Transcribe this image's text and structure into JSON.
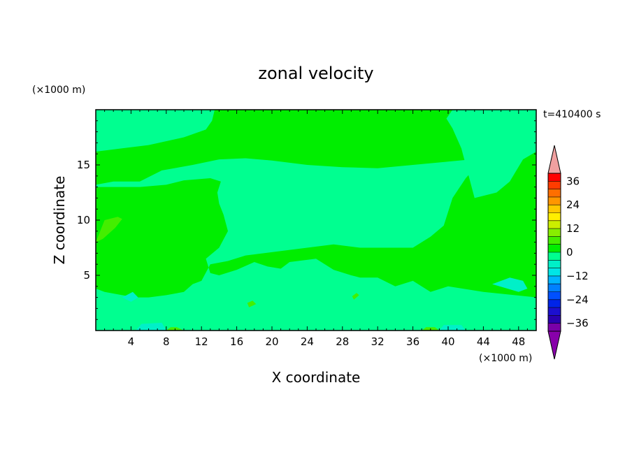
{
  "chart_data": {
    "type": "heatmap",
    "title": "zonal velocity",
    "xlabel": "X coordinate",
    "ylabel": "Z coordinate",
    "x_unit": "(×1000 m)",
    "y_unit": "(×1000 m)",
    "time_label": "t=410400 s",
    "xlim": [
      0,
      50
    ],
    "ylim": [
      0,
      20
    ],
    "x_ticks": [
      4,
      8,
      12,
      16,
      20,
      24,
      28,
      32,
      36,
      40,
      44,
      48
    ],
    "y_ticks": [
      5,
      10,
      15
    ],
    "colorbar": {
      "levels": [
        -40,
        -36,
        -32,
        -28,
        -24,
        -20,
        -16,
        -12,
        -8,
        -4,
        0,
        4,
        8,
        12,
        16,
        20,
        24,
        28,
        32,
        36,
        40
      ],
      "tick_labels": [
        36,
        24,
        12,
        0,
        -12,
        -24,
        -36
      ],
      "colors": [
        "#7a00a8",
        "#2a00b0",
        "#1c0fcf",
        "#0024e8",
        "#0050ff",
        "#0080ff",
        "#00b4ff",
        "#00e6e6",
        "#00f0c8",
        "#00ff90",
        "#00ee00",
        "#44ee00",
        "#88ee00",
        "#ccee00",
        "#ffee00",
        "#ffc800",
        "#ff9600",
        "#ff6e00",
        "#ff3c00",
        "#ff0000",
        "#f0a0a0"
      ],
      "under_color": "#8800aa",
      "over_color": "#f0a0a0"
    },
    "regions": [
      {
        "class": "0 to 4",
        "color": "#00ee00",
        "points": [
          [
            0,
            0
          ],
          [
            50,
            0
          ],
          [
            50,
            20
          ],
          [
            0,
            20
          ]
        ]
      },
      {
        "class": "-4 to 0",
        "color": "#00ff90",
        "points": [
          [
            0,
            20
          ],
          [
            13.5,
            20
          ],
          [
            13.2,
            19
          ],
          [
            12.5,
            18.2
          ],
          [
            10,
            17.5
          ],
          [
            6,
            16.8
          ],
          [
            3,
            16.5
          ],
          [
            0,
            16.2
          ]
        ]
      },
      {
        "class": "-4 to 0",
        "color": "#00ff90",
        "points": [
          [
            40.5,
            20
          ],
          [
            50,
            20
          ],
          [
            50,
            16.2
          ],
          [
            48.5,
            15.5
          ],
          [
            47,
            13.5
          ],
          [
            45.5,
            12.5
          ],
          [
            43,
            12
          ],
          [
            41.5,
            16.5
          ],
          [
            40.5,
            18.3
          ],
          [
            39.8,
            19.2
          ]
        ]
      },
      {
        "class": "-4 to 0",
        "color": "#00ff90",
        "points": [
          [
            0,
            13.2
          ],
          [
            2,
            13.5
          ],
          [
            5,
            13.5
          ],
          [
            7.5,
            14.5
          ],
          [
            11,
            15
          ],
          [
            14,
            15.5
          ],
          [
            17,
            15.6
          ],
          [
            20,
            15.4
          ],
          [
            24,
            15
          ],
          [
            28,
            14.8
          ],
          [
            32,
            14.7
          ],
          [
            36,
            15
          ],
          [
            40,
            15.3
          ],
          [
            44,
            15.6
          ],
          [
            42,
            13.8
          ],
          [
            40.5,
            12
          ],
          [
            39.5,
            9.5
          ],
          [
            38,
            8.5
          ],
          [
            36,
            7.5
          ],
          [
            34,
            7.5
          ],
          [
            30,
            7.5
          ],
          [
            27,
            7.8
          ],
          [
            24,
            7.5
          ],
          [
            21,
            7.2
          ],
          [
            17,
            6.8
          ],
          [
            15,
            6.3
          ],
          [
            13,
            6
          ],
          [
            12,
            4.5
          ],
          [
            11,
            4.2
          ],
          [
            10,
            3.5
          ],
          [
            8,
            3.2
          ],
          [
            6,
            3
          ],
          [
            4.5,
            3
          ],
          [
            3,
            3.2
          ],
          [
            1,
            3.5
          ],
          [
            0,
            3.8
          ],
          [
            0,
            0
          ],
          [
            50,
            0
          ],
          [
            50,
            3
          ],
          [
            44,
            3.5
          ],
          [
            40,
            4
          ],
          [
            38,
            3.5
          ],
          [
            36,
            4.5
          ],
          [
            34,
            4
          ],
          [
            32,
            4.8
          ],
          [
            30,
            4.8
          ],
          [
            29,
            5
          ],
          [
            27,
            5.5
          ],
          [
            25,
            6.5
          ],
          [
            22,
            6.2
          ],
          [
            21,
            5.6
          ],
          [
            19.5,
            5.8
          ],
          [
            18,
            6.2
          ],
          [
            16,
            5.5
          ],
          [
            14,
            5
          ],
          [
            13,
            5.2
          ],
          [
            12.5,
            6.5
          ],
          [
            14,
            7.5
          ],
          [
            15,
            9
          ],
          [
            14.5,
            10.5
          ],
          [
            14,
            11.5
          ],
          [
            13.8,
            12.5
          ],
          [
            14.2,
            13.5
          ],
          [
            13,
            13.8
          ],
          [
            10,
            13.6
          ],
          [
            8,
            13.2
          ],
          [
            5,
            13
          ],
          [
            0,
            13
          ]
        ]
      },
      {
        "class": "-8 to -4",
        "color": "#00f0c8",
        "points": [
          [
            3,
            3
          ],
          [
            4,
            2.6
          ],
          [
            4.8,
            3
          ],
          [
            4.2,
            3.5
          ]
        ]
      },
      {
        "class": "-8 to -4",
        "color": "#00f0c8",
        "points": [
          [
            45,
            4.2
          ],
          [
            47,
            4.8
          ],
          [
            48.5,
            4.5
          ],
          [
            49,
            3.8
          ],
          [
            48,
            3.5
          ]
        ]
      },
      {
        "class": "-8 to -4",
        "color": "#00f0c8",
        "points": [
          [
            4.5,
            0
          ],
          [
            8,
            0
          ],
          [
            7.5,
            0.7
          ],
          [
            5.2,
            0.6
          ]
        ]
      },
      {
        "class": "-8 to -4",
        "color": "#00f0c8",
        "points": [
          [
            39,
            0
          ],
          [
            42,
            0
          ],
          [
            41.5,
            0.5
          ],
          [
            39.5,
            0.5
          ]
        ]
      },
      {
        "class": "4 to 8",
        "color": "#44ee00",
        "points": [
          [
            0,
            8
          ],
          [
            0.8,
            8.3
          ],
          [
            2.2,
            9.3
          ],
          [
            3,
            10.1
          ],
          [
            2.5,
            10.3
          ],
          [
            1,
            10
          ],
          [
            0.5,
            9
          ]
        ]
      },
      {
        "class": "4 to 8",
        "color": "#44ee00",
        "points": [
          [
            17.4,
            2.1
          ],
          [
            18.2,
            2.4
          ],
          [
            17.8,
            2.7
          ],
          [
            17.2,
            2.5
          ]
        ]
      },
      {
        "class": "4 to 8",
        "color": "#44ee00",
        "points": [
          [
            29.3,
            2.8
          ],
          [
            29.9,
            3.2
          ],
          [
            29.6,
            3.4
          ],
          [
            29.1,
            3.1
          ]
        ]
      },
      {
        "class": "4 to 8",
        "color": "#44ee00",
        "points": [
          [
            8,
            0
          ],
          [
            10,
            0
          ],
          [
            9.2,
            0.3
          ],
          [
            8.5,
            0.3
          ]
        ]
      },
      {
        "class": "4 to 8",
        "color": "#44ee00",
        "points": [
          [
            37,
            0
          ],
          [
            39,
            0
          ],
          [
            38.5,
            0.3
          ],
          [
            37.5,
            0.3
          ]
        ]
      }
    ]
  }
}
